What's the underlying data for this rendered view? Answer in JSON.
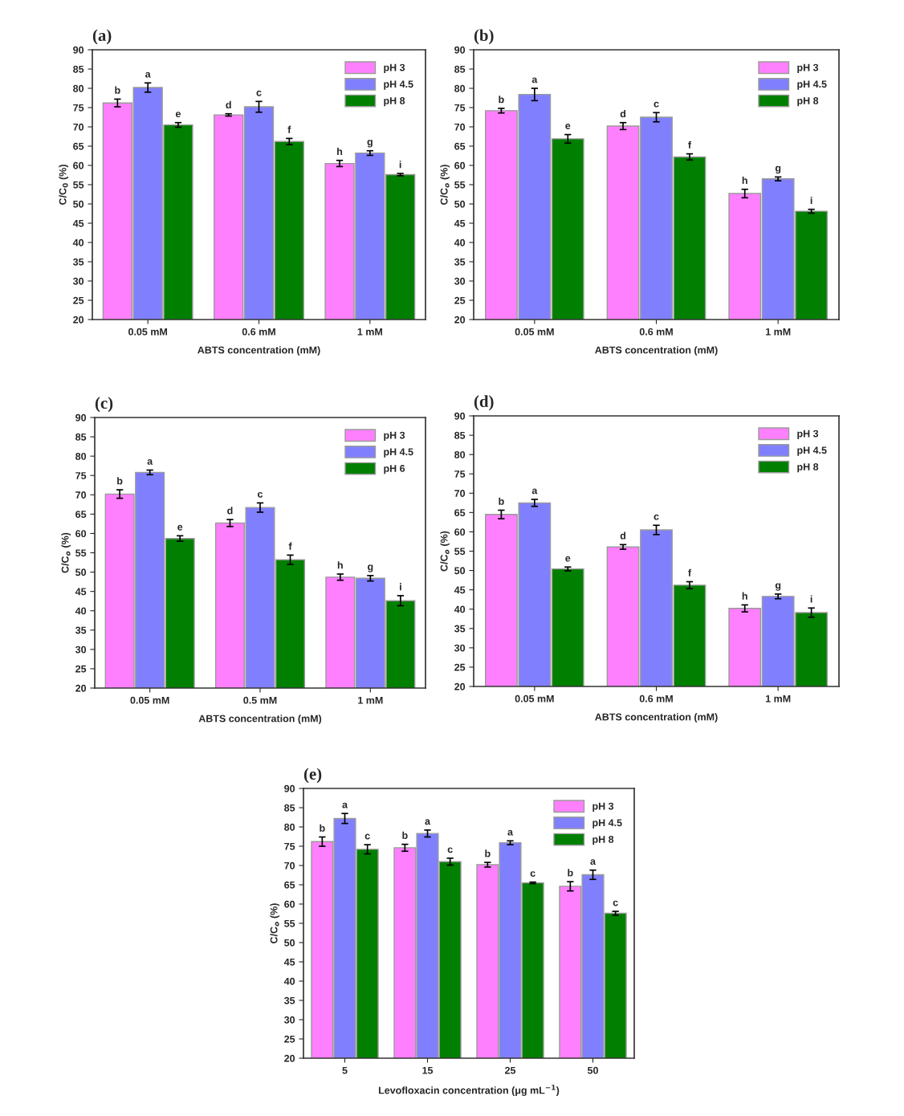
{
  "chart_data": [
    {
      "type": "bar",
      "title": "(a)",
      "xlabel": "ABTS concentration (mM)",
      "ylabel": "C/C$_{0}$ (%)",
      "categories": [
        "0.05 mM",
        "0.6 mM",
        "1 mM"
      ],
      "ylim": [
        20,
        90
      ],
      "yticks": [
        20,
        25,
        30,
        35,
        40,
        45,
        50,
        55,
        60,
        65,
        70,
        75,
        80,
        85,
        90
      ],
      "grid": false,
      "legend": "top right",
      "series": [
        {
          "name": "pH 3",
          "color": "#ff80ff",
          "values": [
            76.2,
            73.1,
            60.5
          ],
          "errors": [
            1.0,
            0.3,
            0.8
          ],
          "value_labels": [
            "b",
            "d",
            "h"
          ]
        },
        {
          "name": "pH 4.5",
          "color": "#8080ff",
          "values": [
            80.2,
            75.2,
            63.2
          ],
          "errors": [
            1.2,
            1.4,
            0.6
          ],
          "value_labels": [
            "a",
            "c",
            "g"
          ]
        },
        {
          "name": "pH 8",
          "color": "#007f00",
          "values": [
            70.5,
            66.2,
            57.6
          ],
          "errors": [
            0.6,
            0.8,
            0.3
          ],
          "value_labels": [
            "e",
            "f",
            "i"
          ]
        }
      ]
    },
    {
      "type": "bar",
      "title": "(b)",
      "xlabel": "ABTS concentration (mM)",
      "ylabel": "C/C$_{o}$ (%)",
      "categories": [
        "0.05 mM",
        "0.6 mM",
        "1 mM"
      ],
      "ylim": [
        20,
        90
      ],
      "yticks": [
        20,
        25,
        30,
        35,
        40,
        45,
        50,
        55,
        60,
        65,
        70,
        75,
        80,
        85,
        90
      ],
      "grid": false,
      "legend": "top right",
      "series": [
        {
          "name": "pH 3",
          "color": "#ff80ff",
          "values": [
            74.2,
            70.2,
            52.7
          ],
          "errors": [
            0.6,
            0.9,
            1.1
          ],
          "value_labels": [
            "b",
            "d",
            "h"
          ]
        },
        {
          "name": "pH 4.5",
          "color": "#8080ff",
          "values": [
            78.4,
            72.5,
            56.5
          ],
          "errors": [
            1.6,
            1.2,
            0.5
          ],
          "value_labels": [
            "a",
            "c",
            "g"
          ]
        },
        {
          "name": "pH 8",
          "color": "#007f00",
          "values": [
            66.9,
            62.2,
            48.1
          ],
          "errors": [
            1.1,
            0.8,
            0.5
          ],
          "value_labels": [
            "e",
            "f",
            "i"
          ]
        }
      ]
    },
    {
      "type": "bar",
      "title": "(c)",
      "xlabel": "ABTS concentration (mM)",
      "ylabel": "C/C$_{o}$ (%)",
      "categories": [
        "0.05 mM",
        "0.5 mM",
        "1 mM"
      ],
      "ylim": [
        20,
        90
      ],
      "yticks": [
        20,
        25,
        30,
        35,
        40,
        45,
        50,
        55,
        60,
        65,
        70,
        75,
        80,
        85,
        90
      ],
      "grid": false,
      "legend": "top right",
      "series": [
        {
          "name": "pH 3",
          "color": "#ff80ff",
          "values": [
            70.2,
            62.7,
            48.7
          ],
          "errors": [
            1.1,
            0.9,
            0.8
          ],
          "value_labels": [
            "b",
            "d",
            "h"
          ]
        },
        {
          "name": "pH 4.5",
          "color": "#8080ff",
          "values": [
            75.8,
            66.7,
            48.4
          ],
          "errors": [
            0.6,
            1.2,
            0.7
          ],
          "value_labels": [
            "a",
            "c",
            "g"
          ]
        },
        {
          "name": "pH 6",
          "color": "#007f00",
          "values": [
            58.7,
            53.2,
            42.6
          ],
          "errors": [
            0.7,
            1.2,
            1.3
          ],
          "value_labels": [
            "e",
            "f",
            "i"
          ]
        }
      ]
    },
    {
      "type": "bar",
      "title": "(d)",
      "xlabel": "ABTS concentration (mM)",
      "ylabel": "C/C$_{o}$ (%)",
      "categories": [
        "0.05 mM",
        "0.6 mM",
        "1 mM"
      ],
      "ylim": [
        20,
        90
      ],
      "yticks": [
        20,
        25,
        30,
        35,
        40,
        45,
        50,
        55,
        60,
        65,
        70,
        75,
        80,
        85,
        90
      ],
      "grid": false,
      "legend": "top right",
      "series": [
        {
          "name": "pH 3",
          "color": "#ff80ff",
          "values": [
            64.5,
            56.1,
            40.2
          ],
          "errors": [
            1.1,
            0.6,
            0.9
          ],
          "value_labels": [
            "b",
            "d",
            "h"
          ]
        },
        {
          "name": "pH 4.5",
          "color": "#8080ff",
          "values": [
            67.5,
            60.5,
            43.3
          ],
          "errors": [
            0.9,
            1.2,
            0.6
          ],
          "value_labels": [
            "a",
            "c",
            "g"
          ]
        },
        {
          "name": "pH 8",
          "color": "#007f00",
          "values": [
            50.4,
            46.2,
            39.1
          ],
          "errors": [
            0.5,
            0.9,
            1.2
          ],
          "value_labels": [
            "e",
            "f",
            "i"
          ]
        }
      ]
    },
    {
      "type": "bar",
      "title": "(e)",
      "xlabel": "Levofloxacin concentration (μg mL$^{−1}$)",
      "ylabel": "C/C$_{o}$ (%)",
      "categories": [
        "5",
        "15",
        "25",
        "50"
      ],
      "ylim": [
        20,
        90
      ],
      "yticks": [
        20,
        25,
        30,
        35,
        40,
        45,
        50,
        55,
        60,
        65,
        70,
        75,
        80,
        85,
        90
      ],
      "grid": false,
      "legend": "top right",
      "series": [
        {
          "name": "pH 3",
          "color": "#ff80ff",
          "values": [
            76.2,
            74.6,
            70.2,
            64.6
          ],
          "errors": [
            1.2,
            0.9,
            0.6,
            1.2
          ],
          "value_labels": [
            "b",
            "b",
            "b",
            "b"
          ]
        },
        {
          "name": "pH 4.5",
          "color": "#8080ff",
          "values": [
            82.2,
            78.3,
            75.9,
            67.6
          ],
          "errors": [
            1.3,
            0.9,
            0.5,
            1.2
          ],
          "value_labels": [
            "a",
            "a",
            "a",
            "a"
          ]
        },
        {
          "name": "pH 8",
          "color": "#007f00",
          "values": [
            74.2,
            71.0,
            65.5,
            57.6
          ],
          "errors": [
            1.2,
            0.9,
            0.2,
            0.5
          ],
          "value_labels": [
            "c",
            "c",
            "c",
            "c"
          ]
        }
      ]
    }
  ]
}
